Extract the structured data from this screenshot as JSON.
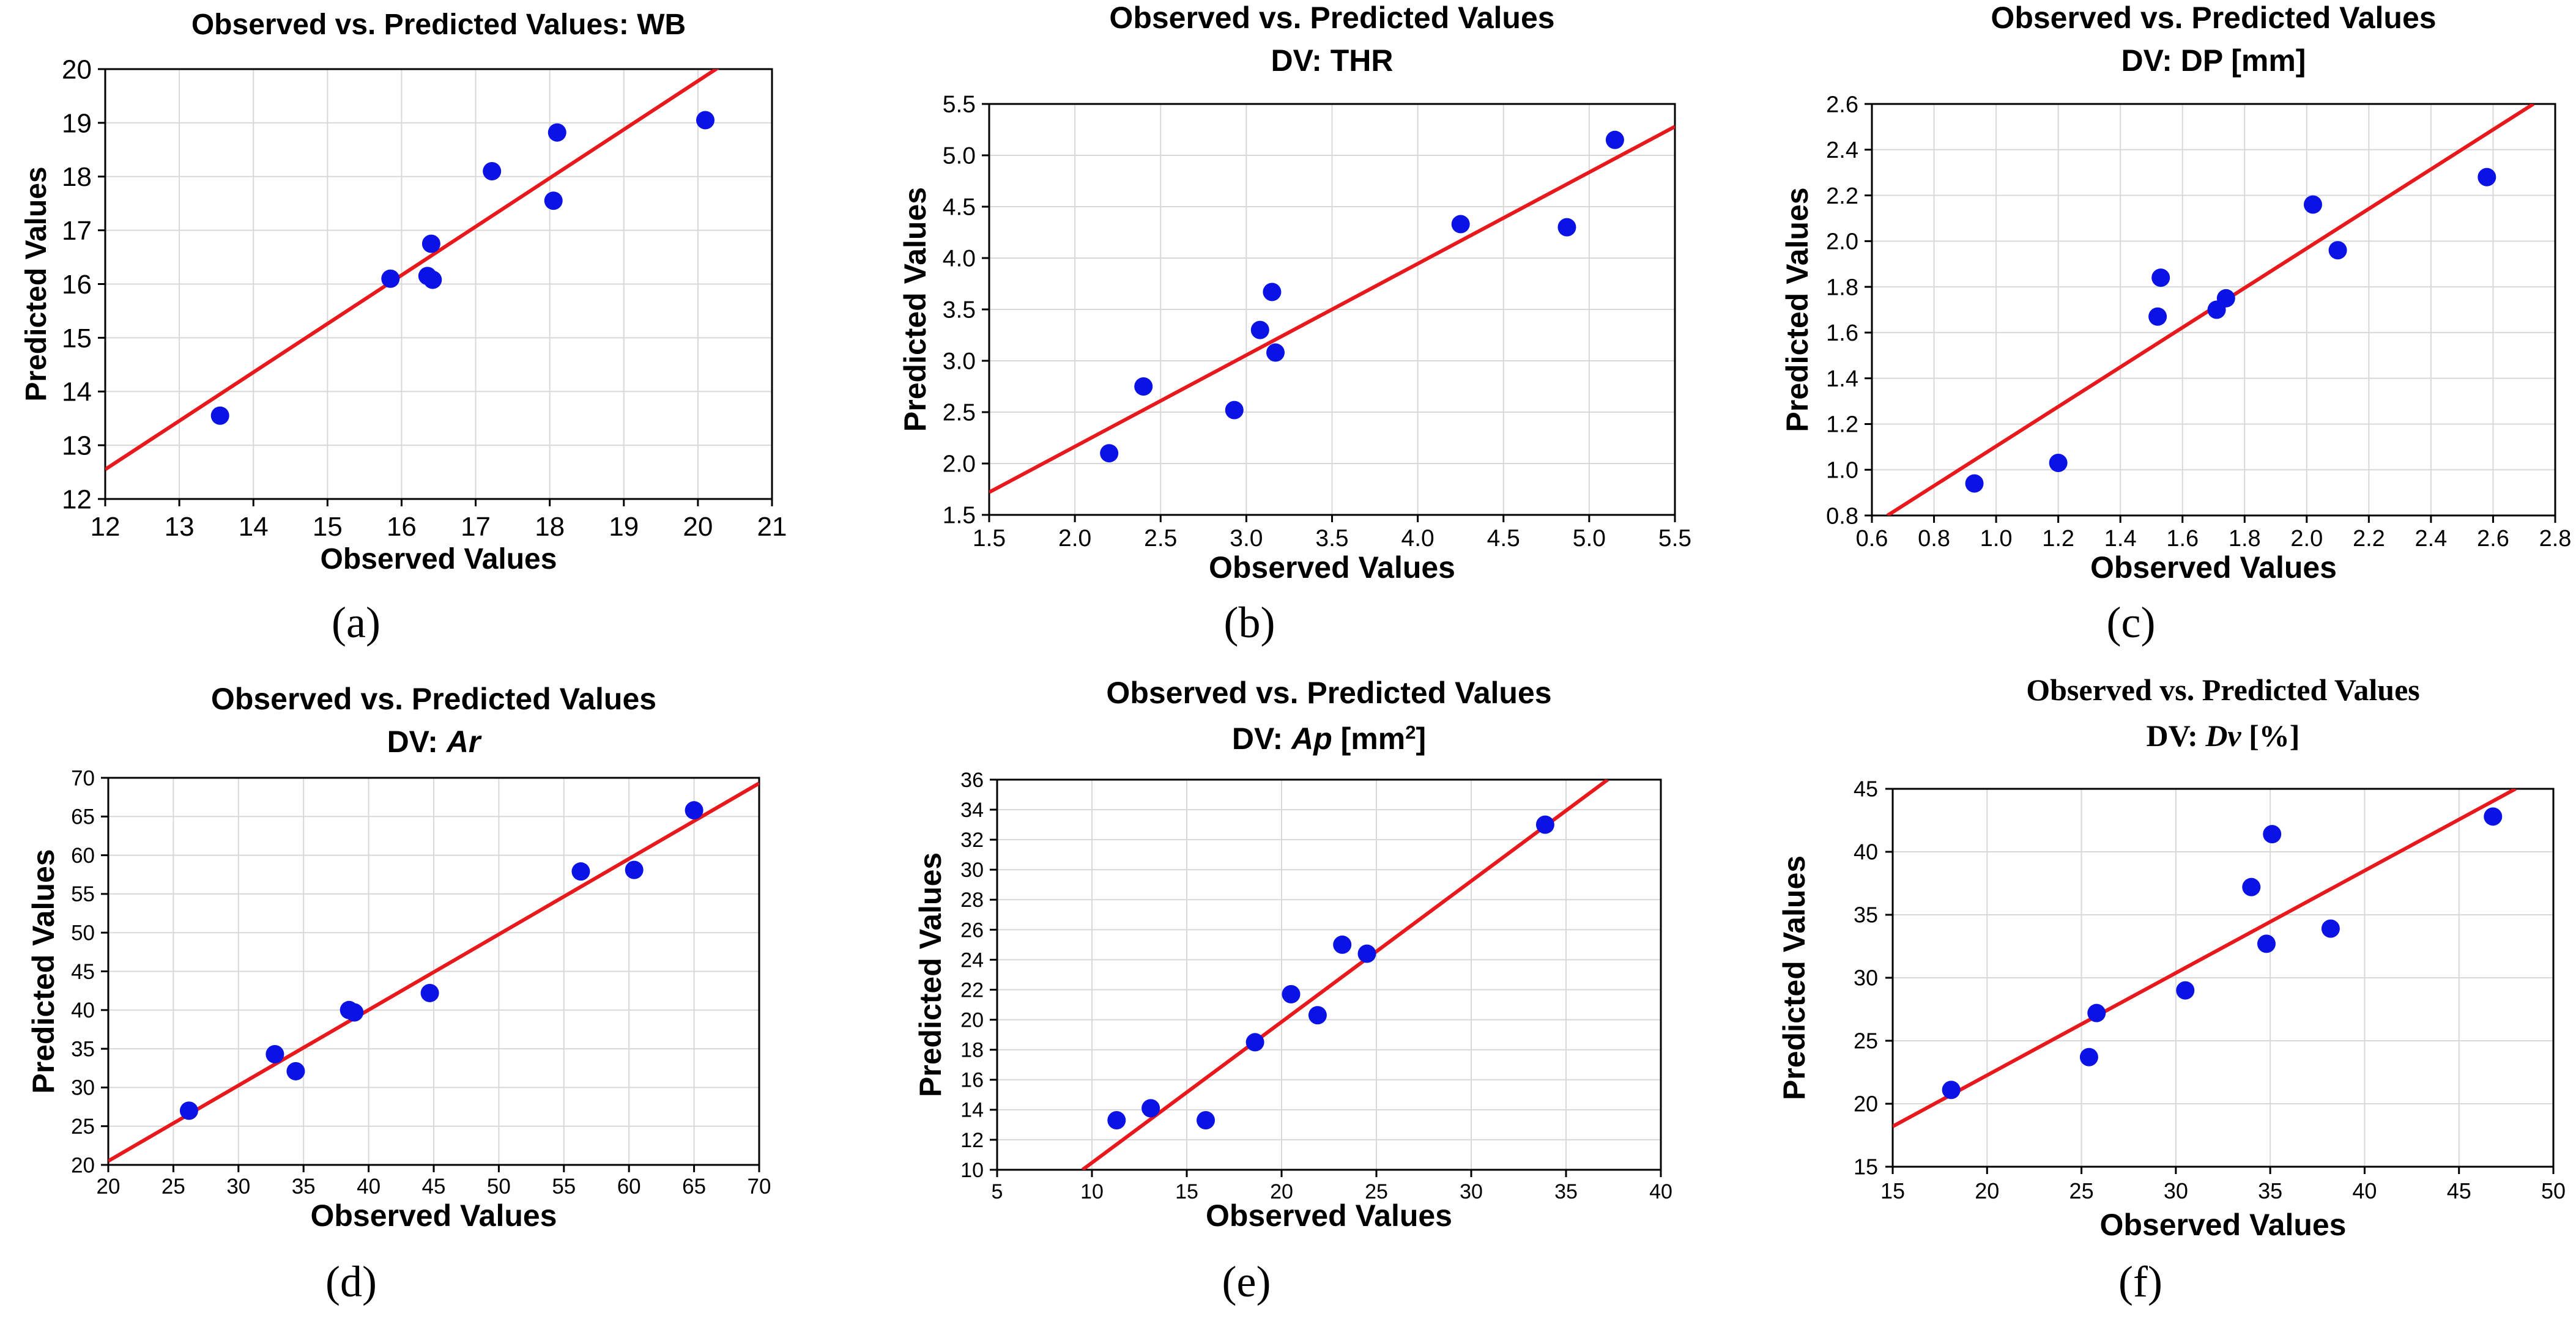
{
  "colors": {
    "line": "#e8191c",
    "point": "#0a12e6",
    "grid": "#d8d8d8",
    "frame": "#000000"
  },
  "chart_data": [
    {
      "panel": "(a)",
      "type": "scatter",
      "title_lines": [
        [
          {
            "text": "Observed vs. Predicted Values: WB",
            "italic": false
          }
        ]
      ],
      "xlabel": "Observed Values",
      "ylabel": "Predicted Values",
      "xlim": [
        12,
        21
      ],
      "ylim": [
        12,
        20
      ],
      "xticks": [
        12,
        13,
        14,
        15,
        16,
        17,
        18,
        19,
        20,
        21
      ],
      "yticks": [
        12,
        13,
        14,
        15,
        16,
        17,
        18,
        19,
        20
      ],
      "points": [
        [
          13.55,
          13.55
        ],
        [
          15.85,
          16.1
        ],
        [
          16.35,
          16.15
        ],
        [
          16.42,
          16.08
        ],
        [
          16.4,
          16.75
        ],
        [
          17.22,
          18.1
        ],
        [
          18.05,
          17.55
        ],
        [
          18.1,
          18.82
        ],
        [
          20.1,
          19.05
        ]
      ],
      "fit_line": [
        [
          12,
          12.55
        ],
        [
          20.3,
          20.05
        ]
      ]
    },
    {
      "panel": "(b)",
      "type": "scatter",
      "title_lines": [
        [
          {
            "text": "Observed vs. Predicted Values",
            "italic": false
          }
        ],
        [
          {
            "text": "DV: THR",
            "italic": false
          }
        ]
      ],
      "xlabel": "Observed Values",
      "ylabel": "Predicted Values",
      "xlim": [
        1.5,
        5.5
      ],
      "ylim": [
        1.5,
        5.5
      ],
      "xticks": [
        1.5,
        2.0,
        2.5,
        3.0,
        3.5,
        4.0,
        4.5,
        5.0,
        5.5
      ],
      "yticks": [
        1.5,
        2.0,
        2.5,
        3.0,
        3.5,
        4.0,
        4.5,
        5.0,
        5.5
      ],
      "tick_decimals": 1,
      "points": [
        [
          2.2,
          2.1
        ],
        [
          2.4,
          2.75
        ],
        [
          2.93,
          2.52
        ],
        [
          3.08,
          3.3
        ],
        [
          3.15,
          3.67
        ],
        [
          3.17,
          3.08
        ],
        [
          4.25,
          4.33
        ],
        [
          4.87,
          4.3
        ],
        [
          5.15,
          5.15
        ]
      ],
      "fit_line": [
        [
          1.5,
          1.72
        ],
        [
          5.5,
          5.28
        ]
      ]
    },
    {
      "panel": "(c)",
      "type": "scatter",
      "title_lines": [
        [
          {
            "text": "Observed vs. Predicted Values",
            "italic": false
          }
        ],
        [
          {
            "text": "DV: DP [mm]",
            "italic": false
          }
        ]
      ],
      "xlabel": "Observed Values",
      "ylabel": "Predicted Values",
      "xlim": [
        0.6,
        2.8
      ],
      "ylim": [
        0.8,
        2.6
      ],
      "xticks": [
        0.6,
        0.8,
        1.0,
        1.2,
        1.4,
        1.6,
        1.8,
        2.0,
        2.2,
        2.4,
        2.6,
        2.8
      ],
      "yticks": [
        0.8,
        1.0,
        1.2,
        1.4,
        1.6,
        1.8,
        2.0,
        2.2,
        2.4,
        2.6
      ],
      "tick_decimals": 1,
      "points": [
        [
          0.93,
          0.94
        ],
        [
          1.2,
          1.03
        ],
        [
          1.52,
          1.67
        ],
        [
          1.53,
          1.84
        ],
        [
          1.71,
          1.7
        ],
        [
          1.74,
          1.75
        ],
        [
          2.02,
          2.16
        ],
        [
          2.1,
          1.96
        ],
        [
          2.58,
          2.28
        ]
      ],
      "fit_line": [
        [
          0.65,
          0.8
        ],
        [
          2.73,
          2.6
        ]
      ]
    },
    {
      "panel": "(d)",
      "type": "scatter",
      "title_lines": [
        [
          {
            "text": "Observed vs. Predicted Values",
            "italic": false
          }
        ],
        [
          {
            "text": "DV: ",
            "italic": false
          },
          {
            "text": "Ar",
            "italic": true
          }
        ]
      ],
      "xlabel": "Observed Values",
      "ylabel": "Predicted Values",
      "xlim": [
        20,
        70
      ],
      "ylim": [
        20,
        70
      ],
      "xticks": [
        20,
        25,
        30,
        35,
        40,
        45,
        50,
        55,
        60,
        65,
        70
      ],
      "yticks": [
        20,
        25,
        30,
        35,
        40,
        45,
        50,
        55,
        60,
        65,
        70
      ],
      "points": [
        [
          26.2,
          27.0
        ],
        [
          32.8,
          34.3
        ],
        [
          34.4,
          32.1
        ],
        [
          38.5,
          40.0
        ],
        [
          38.9,
          39.7
        ],
        [
          44.7,
          42.2
        ],
        [
          56.3,
          57.9
        ],
        [
          60.4,
          58.1
        ],
        [
          65.0,
          65.8
        ]
      ],
      "fit_line": [
        [
          20,
          20.5
        ],
        [
          70,
          69.3
        ]
      ]
    },
    {
      "panel": "(e)",
      "type": "scatter",
      "title_lines": [
        [
          {
            "text": "Observed vs. Predicted Values",
            "italic": false
          }
        ],
        [
          {
            "text": "DV: ",
            "italic": false
          },
          {
            "text": "Ap",
            "italic": true
          },
          {
            "text": " [mm",
            "italic": false
          },
          {
            "text": "2",
            "italic": false,
            "sup": true
          },
          {
            "text": "]",
            "italic": false
          }
        ]
      ],
      "xlabel": "Observed Values",
      "ylabel": "Predicted Values",
      "xlim": [
        5,
        40
      ],
      "ylim": [
        10,
        36
      ],
      "xticks": [
        5,
        10,
        15,
        20,
        25,
        30,
        35,
        40
      ],
      "yticks": [
        10,
        12,
        14,
        16,
        18,
        20,
        22,
        24,
        26,
        28,
        30,
        32,
        34,
        36
      ],
      "points": [
        [
          11.3,
          13.3
        ],
        [
          13.1,
          14.1
        ],
        [
          16.0,
          13.3
        ],
        [
          18.6,
          18.5
        ],
        [
          20.5,
          21.7
        ],
        [
          21.9,
          20.3
        ],
        [
          23.2,
          25.0
        ],
        [
          24.5,
          24.4
        ],
        [
          33.9,
          33.0
        ]
      ],
      "fit_line": [
        [
          9.5,
          10
        ],
        [
          37.2,
          36
        ]
      ]
    },
    {
      "panel": "(f)",
      "type": "scatter",
      "title_lines": [
        [
          {
            "text": "Observed vs. Predicted Values",
            "italic": false
          }
        ],
        [
          {
            "text": "DV: ",
            "italic": false
          },
          {
            "text": "Dv",
            "italic": true
          },
          {
            "text": " [%]",
            "italic": false
          }
        ]
      ],
      "title_serif": true,
      "xlabel": "Observed Values",
      "ylabel": "Predicted Values",
      "xlim": [
        15,
        50
      ],
      "ylim": [
        15,
        45
      ],
      "xticks": [
        15,
        20,
        25,
        30,
        35,
        40,
        45,
        50
      ],
      "yticks": [
        15,
        20,
        25,
        30,
        35,
        40,
        45
      ],
      "points": [
        [
          18.1,
          21.1
        ],
        [
          25.4,
          23.7
        ],
        [
          25.8,
          27.2
        ],
        [
          30.5,
          29.0
        ],
        [
          34.0,
          37.2
        ],
        [
          34.8,
          32.7
        ],
        [
          35.1,
          41.4
        ],
        [
          38.2,
          33.9
        ],
        [
          46.8,
          42.8
        ]
      ],
      "fit_line": [
        [
          15,
          18.2
        ],
        [
          48,
          45
        ]
      ]
    }
  ]
}
